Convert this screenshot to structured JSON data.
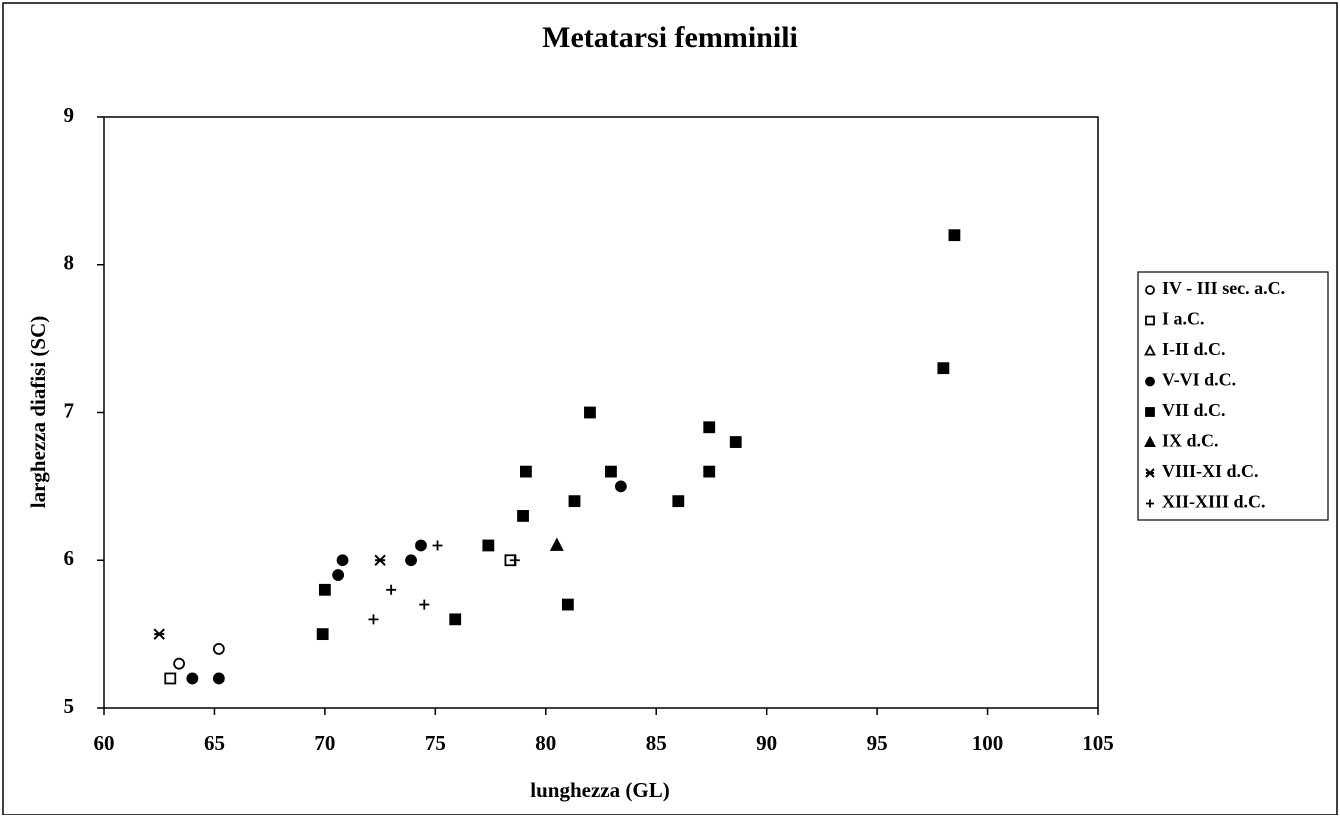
{
  "chart_data": {
    "type": "scatter",
    "title": "Metatarsi femminili",
    "x_label": "lunghezza (GL)",
    "y_label": "larghezza diafisi (SC)",
    "xlim": [
      60,
      105
    ],
    "xticks": [
      60,
      65,
      70,
      75,
      80,
      85,
      90,
      95,
      100,
      105
    ],
    "ylim": [
      5,
      9
    ],
    "yticks": [
      5,
      6,
      7,
      8,
      9
    ],
    "legend": "right",
    "series": [
      {
        "name": "IV - III sec. a.C.",
        "marker": "circle-open",
        "color": "#000000",
        "x": [
          63.4,
          65.2
        ],
        "values": [
          5.3,
          5.4
        ]
      },
      {
        "name": "I a.C.",
        "marker": "square-open",
        "color": "#000000",
        "x": [
          63.0,
          78.4
        ],
        "values": [
          5.2,
          6.0
        ]
      },
      {
        "name": "I-II d.C.",
        "marker": "triangle-open",
        "color": "#000000",
        "x": [],
        "values": []
      },
      {
        "name": "V-VI d.C.",
        "marker": "circle",
        "color": "#000000",
        "x": [
          64.0,
          65.2,
          70.6,
          70.8,
          73.9,
          74.35,
          83.4
        ],
        "values": [
          5.2,
          5.2,
          5.9,
          6.0,
          6.0,
          6.1,
          6.5
        ]
      },
      {
        "name": "VII d.C.",
        "marker": "square",
        "color": "#000000",
        "x": [
          70.0,
          69.9,
          75.9,
          77.4,
          78.97,
          79.1,
          81.0,
          81.3,
          82.0,
          82.95,
          86.0,
          87.4,
          87.4,
          88.6,
          98.0,
          98.5
        ],
        "values": [
          5.8,
          5.5,
          5.6,
          6.1,
          6.3,
          6.6,
          5.7,
          6.4,
          7.0,
          6.6,
          6.4,
          6.6,
          6.9,
          6.8,
          7.3,
          8.2
        ]
      },
      {
        "name": "IX d.C.",
        "marker": "triangle",
        "color": "#000000",
        "x": [
          80.5
        ],
        "values": [
          6.1
        ]
      },
      {
        "name": "VIII-XI d.C.",
        "marker": "asterisk",
        "color": "#000000",
        "x": [
          62.5,
          72.5
        ],
        "values": [
          5.5,
          6.0
        ]
      },
      {
        "name": "XII-XIII d.C.",
        "marker": "plus",
        "color": "#000000",
        "x": [
          72.2,
          73.0,
          74.5,
          75.1,
          78.6
        ],
        "values": [
          5.6,
          5.8,
          5.7,
          6.1,
          6.0
        ]
      }
    ]
  }
}
